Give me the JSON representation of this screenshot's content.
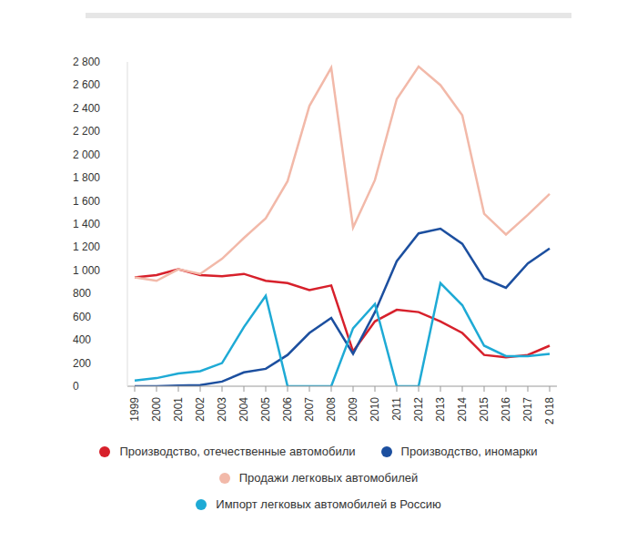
{
  "chart_data": {
    "type": "line",
    "categories": [
      "1999",
      "2000",
      "2001",
      "2002",
      "2003",
      "2004",
      "2005",
      "2006",
      "2007",
      "2008",
      "2009",
      "2010",
      "2011",
      "2012",
      "2013",
      "2014",
      "2015",
      "2016",
      "2017",
      "2 018"
    ],
    "series": [
      {
        "name": "Производство, отечественные автомобили",
        "color": "#d7202b",
        "values": [
          940,
          960,
          1010,
          960,
          950,
          970,
          910,
          890,
          830,
          870,
          300,
          560,
          660,
          640,
          560,
          460,
          270,
          250,
          270,
          350
        ]
      },
      {
        "name": "Производство, иномарки",
        "color": "#1c4f9f",
        "values": [
          0,
          0,
          5,
          10,
          40,
          120,
          150,
          270,
          460,
          590,
          280,
          640,
          1080,
          1320,
          1360,
          1230,
          930,
          850,
          1060,
          1190
        ]
      },
      {
        "name": "Продажи легковых автомобилей",
        "color": "#f2b9a9",
        "values": [
          940,
          910,
          1010,
          970,
          1100,
          1280,
          1450,
          1770,
          2420,
          2750,
          1370,
          1780,
          2480,
          2760,
          2600,
          2340,
          1490,
          1310,
          1480,
          1660
        ]
      },
      {
        "name": "Импорт легковых автомобилей в Россию",
        "color": "#1eaad5",
        "values": [
          50,
          70,
          110,
          130,
          200,
          510,
          780,
          0,
          0,
          0,
          500,
          710,
          0,
          0,
          890,
          700,
          350,
          260,
          260,
          280
        ]
      }
    ],
    "ylim": [
      0,
      2800
    ],
    "yticks": [
      0,
      200,
      400,
      600,
      800,
      {
        "value": 1000,
        "label": "1 000"
      },
      {
        "value": 1200,
        "label": "1 200"
      },
      {
        "value": 1400,
        "label": "1 400"
      },
      {
        "value": 1600,
        "label": "1 600"
      },
      {
        "value": 1800,
        "label": "1 800"
      },
      {
        "value": 2000,
        "label": "2 000"
      },
      {
        "value": 2200,
        "label": "2 200"
      },
      {
        "value": 2400,
        "label": "2 400"
      },
      {
        "value": 2600,
        "label": "2 600"
      },
      {
        "value": 2800,
        "label": "2 800"
      }
    ],
    "grid": false,
    "legend": "bottom"
  }
}
